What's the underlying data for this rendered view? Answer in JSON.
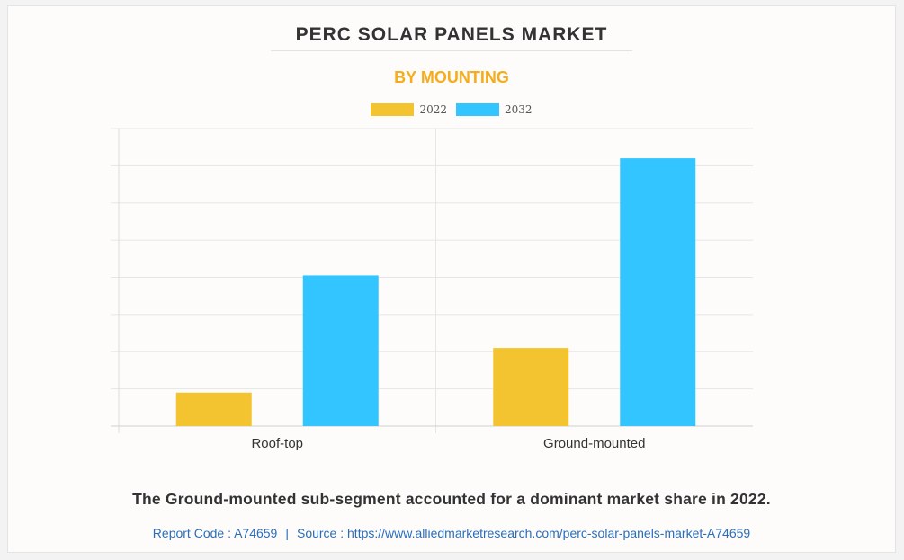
{
  "chart_data": {
    "type": "bar",
    "title": "PERC SOLAR PANELS MARKET",
    "subtitle": "BY MOUNTING",
    "categories": [
      "Roof-top",
      "Ground-mounted"
    ],
    "series": [
      {
        "name": "2022",
        "color": "#f4c430",
        "values": [
          0.9,
          2.1
        ]
      },
      {
        "name": "2032",
        "color": "#33c5ff",
        "values": [
          4.05,
          7.2
        ]
      }
    ],
    "ylim": [
      0,
      8
    ],
    "grid": true,
    "legend": "top-center"
  },
  "caption": "The Ground-mounted sub-segment accounted for a dominant market share in 2022.",
  "source": {
    "report_code": "Report Code : A74659",
    "separator": "|",
    "source_text": "Source : https://www.alliedmarketresearch.com/perc-solar-panels-market-A74659"
  }
}
